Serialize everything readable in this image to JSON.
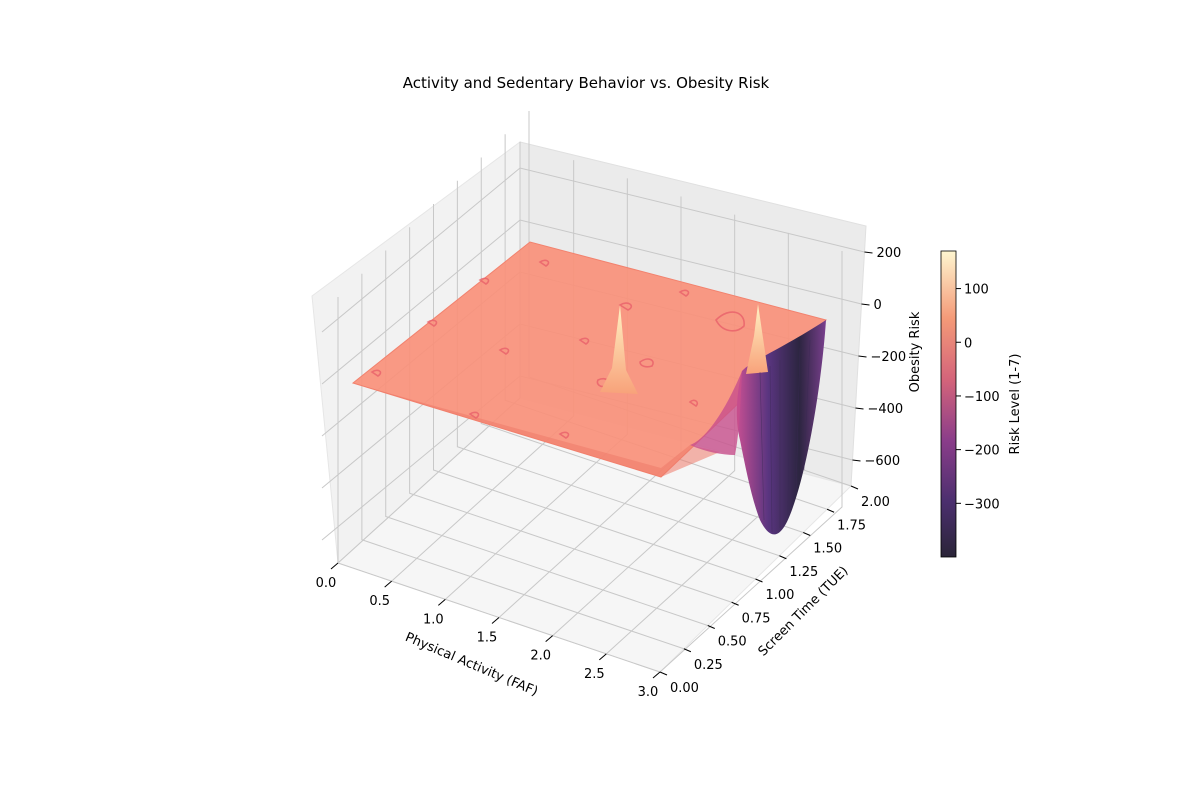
{
  "chart_data": {
    "type": "surface3d",
    "title": "Activity and Sedentary Behavior vs. Obesity Risk",
    "xlabel": "Physical Activity (FAF)",
    "ylabel": "Screen Time (TUE)",
    "zlabel": "Obesity Risk",
    "xlim": [
      0,
      3
    ],
    "ylim": [
      0,
      2
    ],
    "zlim": [
      -700,
      300
    ],
    "x_ticks": [
      "0.0",
      "0.5",
      "1.0",
      "1.5",
      "2.0",
      "2.5",
      "3.0"
    ],
    "y_ticks": [
      "0.00",
      "0.25",
      "0.50",
      "0.75",
      "1.00",
      "1.25",
      "1.50",
      "1.75",
      "2.00"
    ],
    "z_ticks": [
      "−600",
      "−400",
      "−200",
      "0",
      "200"
    ],
    "surface": {
      "baseline": 0,
      "features": [
        {
          "kind": "spike",
          "x": 1.5,
          "y": 1.3,
          "z": 190
        },
        {
          "kind": "spike",
          "x": 3.0,
          "y": 2.0,
          "z": 160
        },
        {
          "kind": "trough",
          "x": 3.0,
          "y": 1.5,
          "z": -690
        },
        {
          "kind": "dip",
          "x": 3.0,
          "y": 0.8,
          "z": -230
        }
      ],
      "colormap": "magma"
    },
    "colorbar": {
      "label": "Risk Level (1-7)",
      "range": [
        -400,
        170
      ],
      "ticks": [
        "100",
        "0",
        "−100",
        "−200",
        "−300"
      ]
    },
    "grid": true
  }
}
